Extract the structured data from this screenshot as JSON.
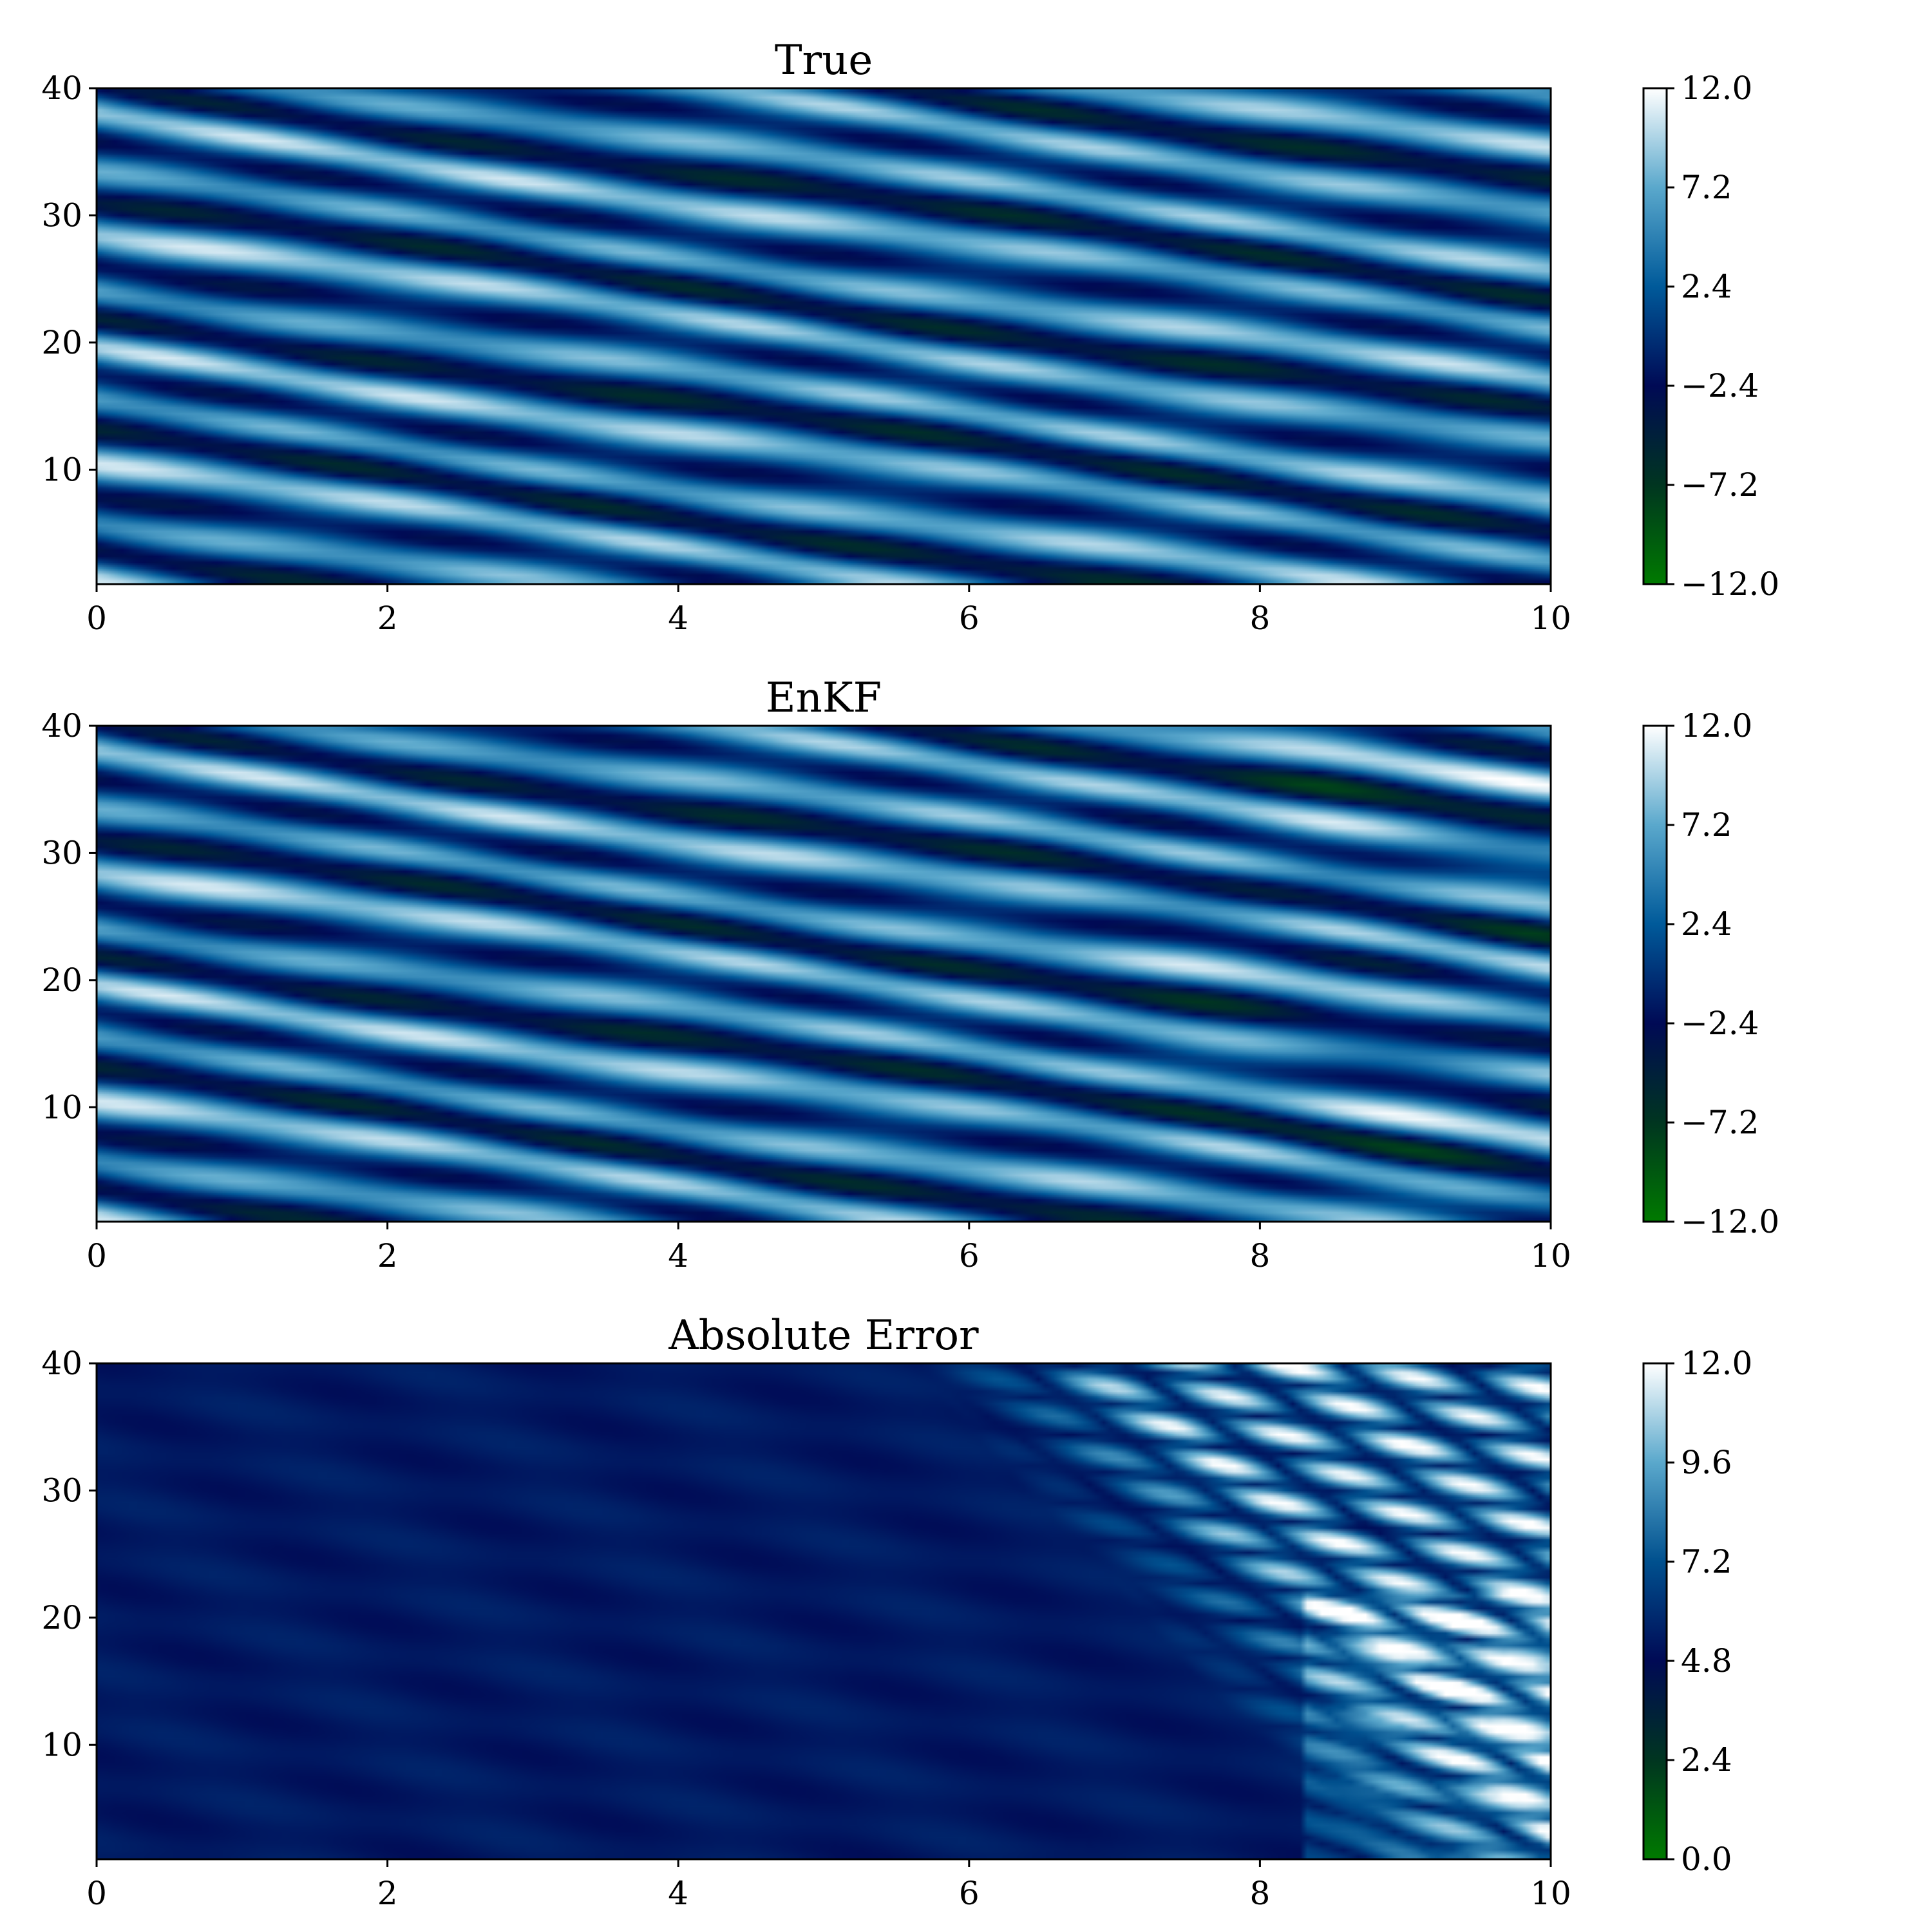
{
  "chart_data": [
    {
      "type": "heatmap",
      "title": "True",
      "xlim": [
        0,
        10
      ],
      "ylim": [
        1,
        40
      ],
      "x_ticks": [
        "0",
        "2",
        "4",
        "6",
        "8",
        "10"
      ],
      "x_tick_values": [
        0,
        2,
        4,
        6,
        8,
        10
      ],
      "y_ticks": [
        "10",
        "20",
        "30",
        "40"
      ],
      "y_tick_values": [
        10,
        20,
        30,
        40
      ],
      "colorbar": {
        "range": [
          -12.0,
          12.0
        ],
        "ticks": [
          "12.0",
          "7.2",
          "2.4",
          "−2.4",
          "−7.2",
          "−12.0"
        ],
        "tick_values": [
          12.0,
          7.2,
          2.4,
          -2.4,
          -7.2,
          -12.0
        ],
        "colormap": [
          "#007a00",
          "#003520",
          "#000a55",
          "#005a9a",
          "#5aa8cc",
          "#ffffff"
        ]
      },
      "pattern": "diagonal wave bands descending to the right (Lorenz-96 state evolution)"
    },
    {
      "type": "heatmap",
      "title": "EnKF",
      "xlim": [
        0,
        10
      ],
      "ylim": [
        1,
        40
      ],
      "x_ticks": [
        "0",
        "2",
        "4",
        "6",
        "8",
        "10"
      ],
      "x_tick_values": [
        0,
        2,
        4,
        6,
        8,
        10
      ],
      "y_ticks": [
        "10",
        "20",
        "30",
        "40"
      ],
      "y_tick_values": [
        10,
        20,
        30,
        40
      ],
      "colorbar": {
        "range": [
          -12.0,
          12.0
        ],
        "ticks": [
          "12.0",
          "7.2",
          "2.4",
          "−2.4",
          "−7.2",
          "−12.0"
        ],
        "tick_values": [
          12.0,
          7.2,
          2.4,
          -2.4,
          -7.2,
          -12.0
        ],
        "colormap": [
          "#007a00",
          "#003520",
          "#000a55",
          "#005a9a",
          "#5aa8cc",
          "#ffffff"
        ]
      },
      "pattern": "diagonal wave bands similar to True, diverging after t≈7"
    },
    {
      "type": "heatmap",
      "title": "Absolute Error",
      "xlim": [
        0,
        10
      ],
      "ylim": [
        1,
        40
      ],
      "x_ticks": [
        "0",
        "2",
        "4",
        "6",
        "8",
        "10"
      ],
      "x_tick_values": [
        0,
        2,
        4,
        6,
        8,
        10
      ],
      "y_ticks": [
        "10",
        "20",
        "30",
        "40"
      ],
      "y_tick_values": [
        10,
        20,
        30,
        40
      ],
      "colorbar": {
        "range": [
          0.0,
          12.0
        ],
        "ticks": [
          "12.0",
          "9.6",
          "7.2",
          "4.8",
          "2.4",
          "0.0"
        ],
        "tick_values": [
          12.0,
          9.6,
          7.2,
          4.8,
          2.4,
          0.0
        ],
        "colormap": [
          "#007a00",
          "#003520",
          "#000a55",
          "#00508e",
          "#5aa8cc",
          "#ffffff"
        ]
      },
      "pattern": "uniform near base level for t<6, growing patchy errors for t>7"
    }
  ]
}
